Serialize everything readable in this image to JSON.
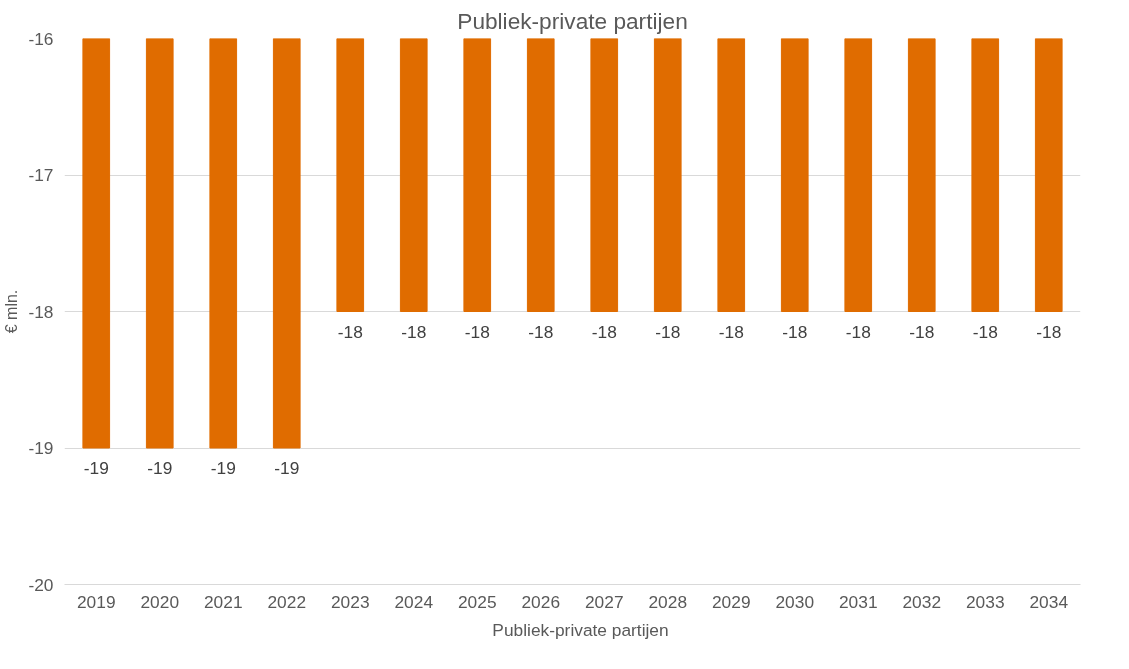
{
  "chart_data": {
    "type": "bar",
    "title": "Publiek-private partijen",
    "ylabel": "€ mln.",
    "categories": [
      "2019",
      "2020",
      "2021",
      "2022",
      "2023",
      "2024",
      "2025",
      "2026",
      "2027",
      "2028",
      "2029",
      "2030",
      "2031",
      "2032",
      "2033",
      "2034"
    ],
    "series": [
      {
        "name": "Publiek-private partijen",
        "color": "#e06c00",
        "values": [
          -19,
          -19,
          -19,
          -19,
          -18,
          -18,
          -18,
          -18,
          -18,
          -18,
          -18,
          -18,
          -18,
          -18,
          -18,
          -18
        ]
      }
    ],
    "ylim": [
      -20,
      -16
    ],
    "yticks": [
      -20,
      -19,
      -18,
      -17,
      -16
    ],
    "grid": "y",
    "legend": "bottom",
    "data_labels": true
  }
}
